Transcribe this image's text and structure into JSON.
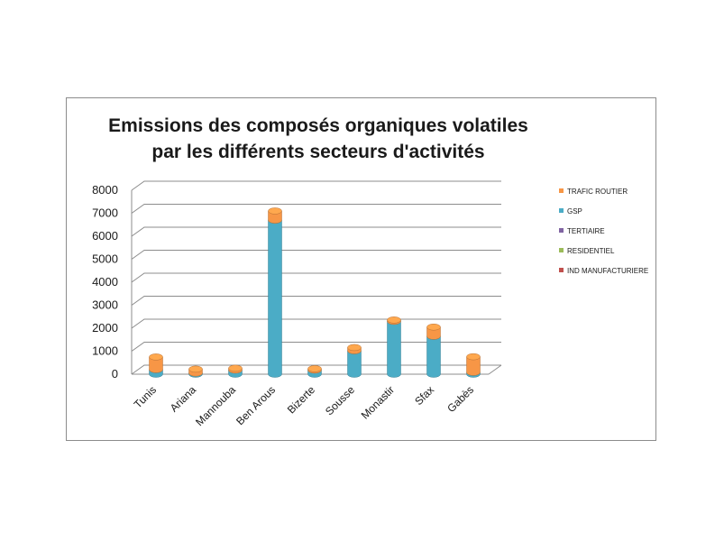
{
  "chart_data": {
    "type": "bar",
    "title_lines": [
      "Emissions des composés organiques volatiles",
      "par les différents secteurs d'activités"
    ],
    "categories": [
      "Tunis",
      "Ariana",
      "Mannouba",
      "Ben Arous",
      "Bizerte",
      "Sousse",
      "Monastir",
      "Sfax",
      "Gabès"
    ],
    "series": [
      {
        "name": "IND MANUFACTURIERE",
        "color": "#c0504d",
        "values": [
          0,
          0,
          0,
          0,
          0,
          0,
          0,
          0,
          0
        ]
      },
      {
        "name": "RESIDENTIEL",
        "color": "#9bbb59",
        "values": [
          0,
          0,
          0,
          0,
          0,
          0,
          0,
          0,
          0
        ]
      },
      {
        "name": "TERTIAIRE",
        "color": "#8064a2",
        "values": [
          0,
          0,
          0,
          0,
          0,
          0,
          0,
          0,
          0
        ]
      },
      {
        "name": "GSP",
        "color": "#4bacc6",
        "values": [
          200,
          50,
          180,
          6700,
          180,
          1020,
          2300,
          1650,
          80
        ]
      },
      {
        "name": "TRAFIC ROUTIER",
        "color": "#f79646",
        "values": [
          550,
          170,
          80,
          400,
          60,
          140,
          60,
          400,
          680
        ]
      }
    ],
    "stacked": true,
    "ylim": [
      0,
      8000
    ],
    "yticks": [
      "0",
      "1000",
      "2000",
      "3000",
      "4000",
      "5000",
      "6000",
      "7000",
      "8000"
    ],
    "grid": true,
    "legend": "right",
    "style": "3d-cylinder"
  }
}
